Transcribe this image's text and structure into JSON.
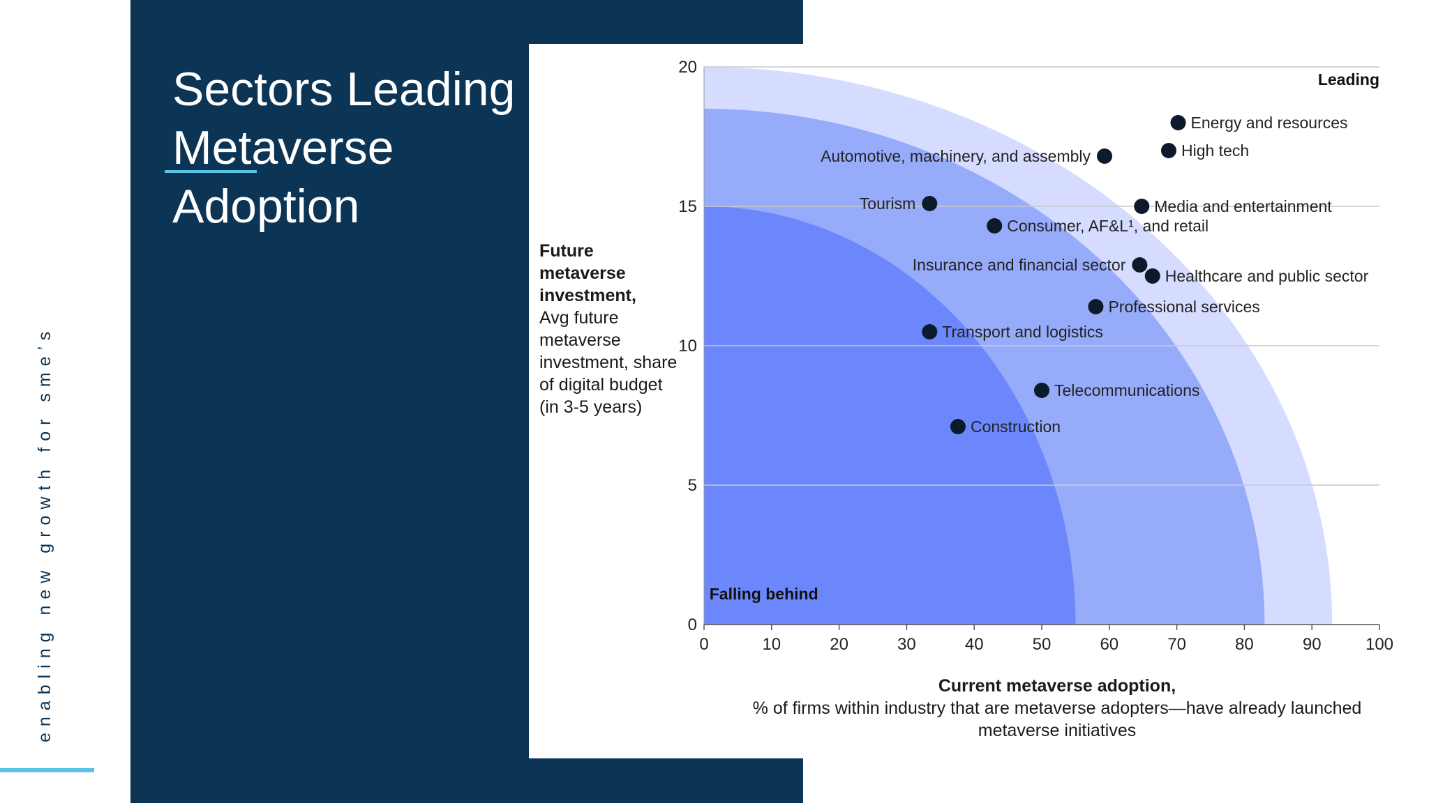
{
  "sidebar": {
    "tagline": "enabling new growth for sme’s"
  },
  "slide": {
    "title_lines": [
      "Sectors Leading",
      "Metaverse",
      "Adoption"
    ]
  },
  "colors": {
    "dark_panel": "#0b3455",
    "accent": "#5bc3e8",
    "band_outer": "#d6dcff",
    "band_mid": "#97abfb",
    "band_inner": "#6b87fb",
    "point": "#0d1a2b"
  },
  "chart_data": {
    "type": "scatter",
    "y_title_bold": "Future metaverse investment,",
    "y_title_rest": "Avg future metaverse investment, share of digital budget",
    "y_title_note": "(in 3-5 years)",
    "x_title_bold": "Current metaverse adoption,",
    "x_title_rest": "% of firms within industry that are metaverse adopters—have already launched metaverse initiatives",
    "xlim": [
      0,
      100
    ],
    "ylim": [
      0,
      20
    ],
    "x_ticks": [
      0,
      10,
      20,
      30,
      40,
      50,
      60,
      70,
      80,
      90,
      100
    ],
    "y_ticks": [
      0,
      5,
      10,
      15,
      20
    ],
    "grid": "horizontal",
    "zones": {
      "top_right": "Leading",
      "bottom_left": "Falling behind"
    },
    "bands": [
      {
        "x_intercept": 93,
        "y_intercept": 20
      },
      {
        "x_intercept": 83,
        "y_intercept": 18.5
      },
      {
        "x_intercept": 55,
        "y_intercept": 15
      }
    ],
    "points": [
      {
        "label": "Energy and resources",
        "x": 70.2,
        "y": 18,
        "side": "right"
      },
      {
        "label": "High tech",
        "x": 68.8,
        "y": 17,
        "side": "right"
      },
      {
        "label": "Automotive, machinery, and assembly",
        "x": 59.3,
        "y": 16.8,
        "side": "left"
      },
      {
        "label": "Tourism",
        "x": 33.4,
        "y": 15.1,
        "side": "left"
      },
      {
        "label": "Media and entertainment",
        "x": 64.8,
        "y": 15,
        "side": "right"
      },
      {
        "label": "Consumer, AF&L¹, and retail",
        "x": 43,
        "y": 14.3,
        "side": "right"
      },
      {
        "label": "Insurance and financial sector",
        "x": 64.5,
        "y": 12.9,
        "side": "left"
      },
      {
        "label": "Healthcare and public sector",
        "x": 66.4,
        "y": 12.5,
        "side": "right"
      },
      {
        "label": "Professional services",
        "x": 58,
        "y": 11.4,
        "side": "right"
      },
      {
        "label": "Transport and logistics",
        "x": 33.4,
        "y": 10.5,
        "side": "right"
      },
      {
        "label": "Telecommunications",
        "x": 50,
        "y": 8.4,
        "side": "right"
      },
      {
        "label": "Construction",
        "x": 37.6,
        "y": 7.1,
        "side": "right"
      }
    ]
  }
}
